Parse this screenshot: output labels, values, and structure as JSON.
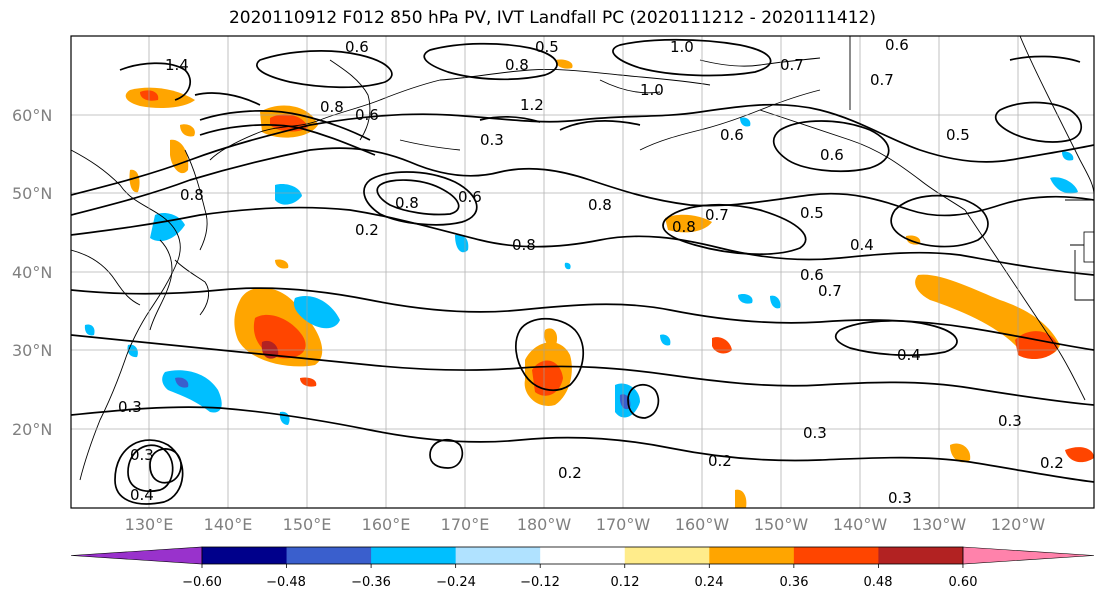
{
  "title": "2020110912 F012 850 hPa PV, IVT Landfall PC (2020111212 - 2020111412)",
  "lat_labels": [
    "60°N",
    "50°N",
    "40°N",
    "30°N",
    "20°N"
  ],
  "lon_labels": [
    "130°E",
    "140°E",
    "150°E",
    "160°E",
    "170°E",
    "180°W",
    "170°W",
    "160°W",
    "150°W",
    "140°W",
    "130°W",
    "120°W"
  ],
  "contour_labels": [
    "0.6",
    "0.5",
    "1.0",
    "0.8",
    "0.7",
    "0.6",
    "0.7",
    "1.4",
    "1.2",
    "1.0",
    "0.8",
    "0.6",
    "0.3",
    "0.8",
    "0.6",
    "0.8",
    "0.2",
    "0.8",
    "0.6",
    "0.8",
    "0.7",
    "0.5",
    "0.4",
    "0.6",
    "0.7",
    "0.4",
    "0.2",
    "0.3",
    "0.3",
    "0.3",
    "0.2",
    "0.2",
    "0.3",
    "0.6",
    "0.8",
    "0.5",
    "0.3",
    "0.4"
  ],
  "colorbar": {
    "ticks": [
      "−0.60",
      "−0.48",
      "−0.36",
      "−0.24",
      "−0.12",
      "0.12",
      "0.24",
      "0.36",
      "0.48",
      "0.60"
    ],
    "colors": [
      "#9932cc",
      "#00008b",
      "#3a5fcd",
      "#00bfff",
      "#b0e2ff",
      "#ffffff",
      "#ffec8b",
      "#ffa500",
      "#ff4500",
      "#b22222",
      "#ff82ab"
    ]
  }
}
